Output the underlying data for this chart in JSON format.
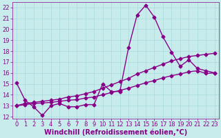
{
  "xlabel": "Windchill (Refroidissement éolien,°C)",
  "bg_color": "#c8ecec",
  "line_color": "#880088",
  "grid_color": "#a8d8d8",
  "spine_color": "#880088",
  "xlim": [
    -0.5,
    23.5
  ],
  "ylim": [
    11.8,
    22.5
  ],
  "yticks": [
    12,
    13,
    14,
    15,
    16,
    17,
    18,
    19,
    20,
    21,
    22
  ],
  "xticks": [
    0,
    1,
    2,
    3,
    4,
    5,
    6,
    7,
    8,
    9,
    10,
    11,
    12,
    13,
    14,
    15,
    16,
    17,
    18,
    19,
    20,
    21,
    22,
    23
  ],
  "line1_x": [
    0,
    1,
    2,
    3,
    4,
    5,
    6,
    7,
    8,
    9,
    10,
    11,
    12,
    13,
    14,
    15,
    16,
    17,
    18,
    19,
    20,
    21,
    22,
    23
  ],
  "line1_y": [
    15.1,
    13.5,
    12.9,
    12.1,
    13.0,
    13.2,
    12.9,
    12.9,
    13.1,
    13.1,
    15.0,
    14.3,
    14.3,
    18.3,
    21.3,
    22.2,
    21.1,
    19.3,
    17.9,
    16.6,
    17.2,
    16.4,
    16.2,
    16.0
  ],
  "line2_x": [
    0,
    1,
    2,
    3,
    4,
    5,
    6,
    7,
    8,
    9,
    10,
    11,
    12,
    13,
    14,
    15,
    16,
    17,
    18,
    19,
    20,
    21,
    22,
    23
  ],
  "line2_y": [
    13.0,
    13.2,
    13.3,
    13.4,
    13.5,
    13.6,
    13.8,
    13.9,
    14.1,
    14.3,
    14.6,
    14.9,
    15.2,
    15.5,
    15.9,
    16.2,
    16.5,
    16.8,
    17.1,
    17.3,
    17.5,
    17.6,
    17.7,
    17.8
  ],
  "line3_x": [
    0,
    1,
    2,
    3,
    4,
    5,
    6,
    7,
    8,
    9,
    10,
    11,
    12,
    13,
    14,
    15,
    16,
    17,
    18,
    19,
    20,
    21,
    22,
    23
  ],
  "line3_y": [
    13.0,
    13.1,
    13.2,
    13.25,
    13.3,
    13.4,
    13.5,
    13.55,
    13.7,
    13.8,
    14.0,
    14.2,
    14.4,
    14.6,
    14.85,
    15.1,
    15.3,
    15.55,
    15.75,
    15.9,
    16.1,
    16.2,
    15.95,
    16.0
  ],
  "marker": "D",
  "markersize": 2.5,
  "linewidth": 1.0,
  "xlabel_fontsize": 7,
  "tick_fontsize": 6,
  "tick_color": "#880088"
}
